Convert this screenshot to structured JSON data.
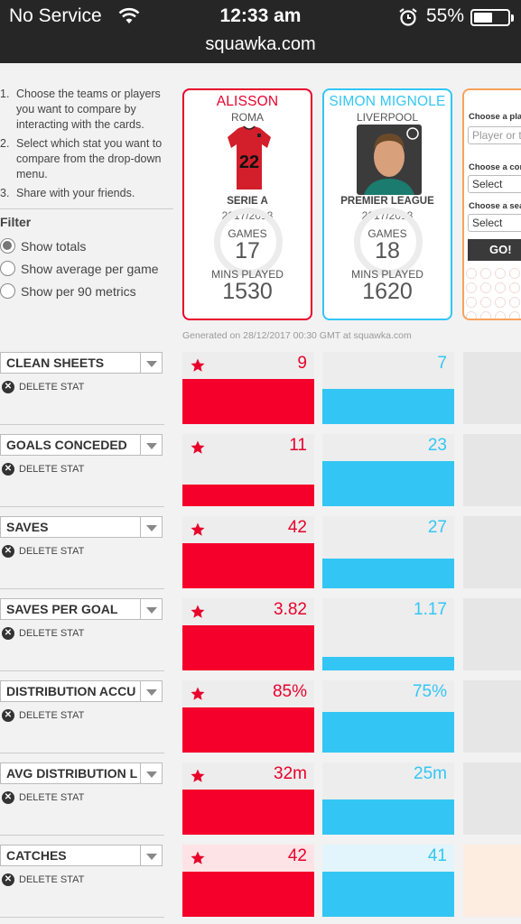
{
  "status_bar": {
    "carrier": "No Service",
    "time": "12:33 am",
    "battery": "55%",
    "battery_level": 0.55,
    "url": "squawka.com"
  },
  "instructions": [
    {
      "num": "1.",
      "text": "Choose the teams or players you want to compare by interacting with the cards."
    },
    {
      "num": "2.",
      "text": "Select which stat you want to compare from the drop-down menu."
    },
    {
      "num": "3.",
      "text": "Share with your friends."
    }
  ],
  "filter": {
    "title": "Filter",
    "options": [
      {
        "label": "Show totals",
        "selected": true
      },
      {
        "label": "Show average per game",
        "selected": false
      },
      {
        "label": "Show per 90 metrics",
        "selected": false
      }
    ]
  },
  "players": [
    {
      "name": "ALISSON",
      "club": "ROMA",
      "shirt_number": "22",
      "league": "SERIE A",
      "season": "2017/2018",
      "games_label": "GAMES",
      "games": "17",
      "mins_label": "MINS PLAYED",
      "mins": "1530",
      "color": "#e8002b"
    },
    {
      "name": "SIMON MIGNOLE",
      "club": "LIVERPOOL",
      "league": "PREMIER LEAGUE",
      "season": "2017/2018",
      "games_label": "GAMES",
      "games": "18",
      "mins_label": "MINS PLAYED",
      "mins": "1620",
      "color": "#33c6f4"
    }
  ],
  "selector_card": {
    "choose_player_label": "Choose a pla",
    "player_placeholder": "Player or t",
    "choose_comp_label": "Choose a con",
    "comp_value": "Select",
    "choose_season_label": "Choose a sea",
    "season_value": "Select",
    "go_label": "GO!"
  },
  "generated": "Generated on 28/12/2017 00:30 GMT at squawka.com",
  "delete_label": "DELETE STAT",
  "stats": [
    {
      "name": "CLEAN SHEETS",
      "a": "9",
      "b": "7",
      "a_fill": 0.63,
      "b_fill": 0.49
    },
    {
      "name": "GOALS CONCEDED",
      "a": "11",
      "b": "23",
      "a_fill": 0.3,
      "b_fill": 0.63
    },
    {
      "name": "SAVES",
      "a": "42",
      "b": "27",
      "a_fill": 0.63,
      "b_fill": 0.41
    },
    {
      "name": "SAVES PER GOAL",
      "a": "3.82",
      "b": "1.17",
      "a_fill": 0.63,
      "b_fill": 0.19
    },
    {
      "name": "DISTRIBUTION ACCU",
      "a": "85%",
      "b": "75%",
      "a_fill": 0.63,
      "b_fill": 0.56
    },
    {
      "name": "AVG DISTRIBUTION L",
      "a": "32m",
      "b": "25m",
      "a_fill": 0.63,
      "b_fill": 0.49
    },
    {
      "name": "CATCHES",
      "a": "42",
      "b": "41",
      "a_fill": 0.63,
      "b_fill": 0.62
    }
  ]
}
